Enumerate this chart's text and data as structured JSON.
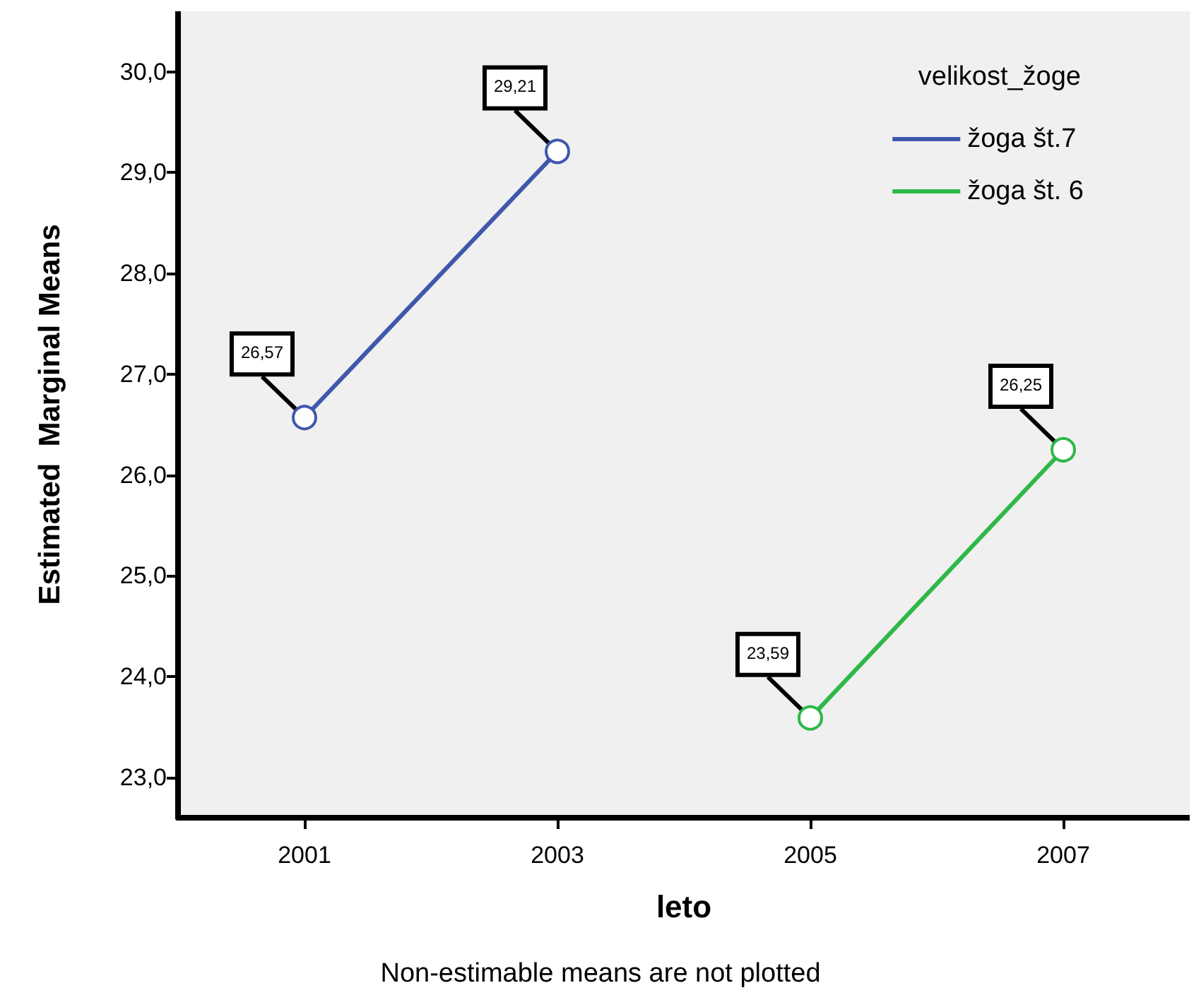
{
  "chart_data": {
    "type": "line",
    "xlabel": "leto",
    "ylabel": "Estimated  Marginal Means",
    "legend_title": "velikost_žoge",
    "annotations": [
      "Non-estimable means are not plotted"
    ],
    "categories": [
      "2001",
      "2003",
      "2005",
      "2007"
    ],
    "series": [
      {
        "name": "žoga št.7",
        "color": "#3e58ac",
        "values": [
          26.57,
          29.21,
          null,
          null
        ],
        "value_labels": [
          "26,57",
          "29,21",
          null,
          null
        ]
      },
      {
        "name": "žoga št. 6",
        "color": "#2eb848",
        "values": [
          null,
          null,
          23.59,
          26.25
        ],
        "value_labels": [
          null,
          null,
          "23,59",
          "26,25"
        ]
      }
    ],
    "ylim": [
      22.6,
      30.6
    ],
    "yticks": [
      {
        "value": 23,
        "label": "23,0"
      },
      {
        "value": 24,
        "label": "24,0"
      },
      {
        "value": 25,
        "label": "25,0"
      },
      {
        "value": 26,
        "label": "26,0"
      },
      {
        "value": 27,
        "label": "27,0"
      },
      {
        "value": 28,
        "label": "28,0"
      },
      {
        "value": 29,
        "label": "29,0"
      },
      {
        "value": 30,
        "label": "30,0"
      }
    ],
    "grid": false,
    "legend": "top right",
    "marker": "circle",
    "line_style": "solid"
  }
}
